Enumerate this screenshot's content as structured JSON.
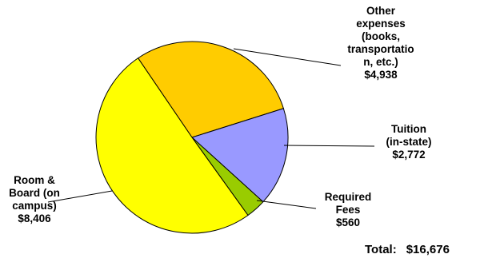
{
  "chart_data": {
    "type": "pie",
    "slices": [
      {
        "label_lines": [
          "Other",
          "expenses",
          "(books,",
          "transportatio",
          "n, etc.)",
          "$4,938"
        ],
        "value": 4938,
        "color": "#FFCC00"
      },
      {
        "label_lines": [
          "Tuition",
          "(in-state)",
          "$2,772"
        ],
        "value": 2772,
        "color": "#9999FF"
      },
      {
        "label_lines": [
          "Required",
          "Fees",
          "$560"
        ],
        "value": 560,
        "color": "#99CC00"
      },
      {
        "label_lines": [
          "Room &",
          "Board (on",
          "campus)",
          "$8,406"
        ],
        "value": 8406,
        "color": "#FFFF00"
      }
    ],
    "total_label": "Total:",
    "total_value": "$16,676"
  }
}
